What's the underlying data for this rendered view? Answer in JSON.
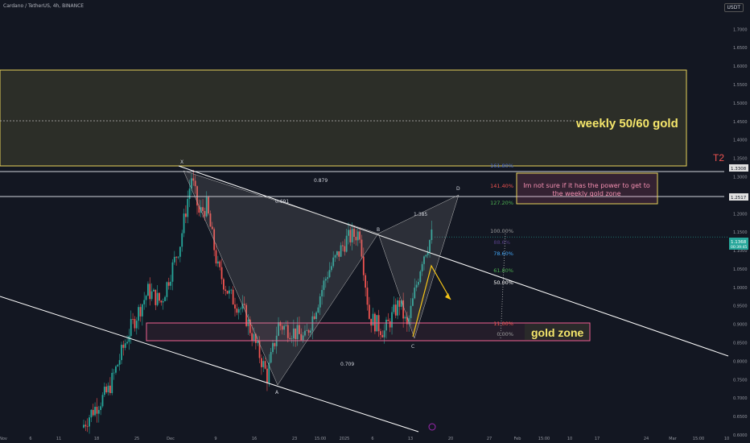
{
  "header": {
    "symbol": "Cardano / TetherUS, 4h, BINANCE",
    "currency": "USDT"
  },
  "annotations": {
    "weekly_zone": "weekly 50/60 gold",
    "gold_zone": "gold zone",
    "note_line1": "Im not sure if it has the power to get to",
    "note_line2": "the weekly gold zone",
    "t2": "T2",
    "pattern_points": {
      "X": "X",
      "A": "A",
      "B": "B",
      "C": "C",
      "D": "D"
    },
    "ratios": {
      "xb": "0.691",
      "xd": "0.879",
      "bd": "1.385",
      "ac": "0.709"
    },
    "fib_levels": [
      "161.80%",
      "141.40%",
      "127.20%",
      "100.00%",
      "78.60%",
      "61.80%",
      "50.00%",
      "11.00%",
      "0.00%"
    ],
    "fib_faint_label": "88.6%",
    "price_tags": {
      "t1": "1.3308",
      "t2": "1.2517",
      "current": "1.1368",
      "current_sub": "00:39:45"
    }
  },
  "colors": {
    "background": "#131722",
    "up": "#26a69a",
    "down": "#ef5350",
    "zone_yellow": "#e8d35a",
    "gold_text": "#f5e66b",
    "pink": "#f06292",
    "trend_white": "#ffffff"
  },
  "chart_data": {
    "type": "candlestick",
    "pair": "ADA/USDT",
    "timeframe": "4h",
    "y_axis_ticks": [
      "1.7000",
      "1.6500",
      "1.6000",
      "1.5500",
      "1.5000",
      "1.4500",
      "1.4000",
      "1.3500",
      "1.3000",
      "1.2500",
      "1.2000",
      "1.1500",
      "1.1000",
      "1.0500",
      "1.0000",
      "0.9500",
      "0.9000",
      "0.8500",
      "0.8000",
      "0.7500",
      "0.7000",
      "0.6500",
      "0.6000"
    ],
    "x_axis_ticks": [
      "Nov",
      "6",
      "11",
      "18",
      "25",
      "Dec",
      "9",
      "16",
      "23",
      "15:00",
      "2025",
      "6",
      "13",
      "20",
      "27",
      "Feb",
      "15:00",
      "10",
      "17",
      "24",
      "Mar",
      "15:00",
      "10"
    ],
    "ylim": [
      0.6,
      1.74
    ],
    "price_path": [
      [
        0,
        0.62
      ],
      [
        5,
        0.66
      ],
      [
        14,
        0.72
      ],
      [
        25,
        0.88
      ],
      [
        35,
        0.99
      ],
      [
        42,
        0.96
      ],
      [
        52,
        1.12
      ],
      [
        58,
        1.3
      ],
      [
        62,
        1.2
      ],
      [
        66,
        1.22
      ],
      [
        72,
        1.05
      ],
      [
        78,
        0.98
      ],
      [
        86,
        0.93
      ],
      [
        98,
        0.76
      ],
      [
        104,
        0.9
      ],
      [
        112,
        0.88
      ],
      [
        118,
        0.86
      ],
      [
        130,
        1.04
      ],
      [
        140,
        1.13
      ],
      [
        147,
        1.15
      ],
      [
        152,
        0.92
      ],
      [
        160,
        0.88
      ],
      [
        168,
        0.96
      ],
      [
        172,
        0.89
      ],
      [
        180,
        1.08
      ],
      [
        185,
        1.14
      ]
    ],
    "zones": [
      {
        "name": "weekly",
        "low": 1.33,
        "high": 1.585
      },
      {
        "name": "gold",
        "low": 0.885,
        "high": 0.925
      }
    ],
    "horizontal_levels": [
      1.3308,
      1.2517
    ],
    "current_price": 1.1368,
    "harmonic_pattern": {
      "X": 1.33,
      "A": 0.76,
      "B": 1.15,
      "C": 0.885,
      "D": 1.25
    }
  }
}
